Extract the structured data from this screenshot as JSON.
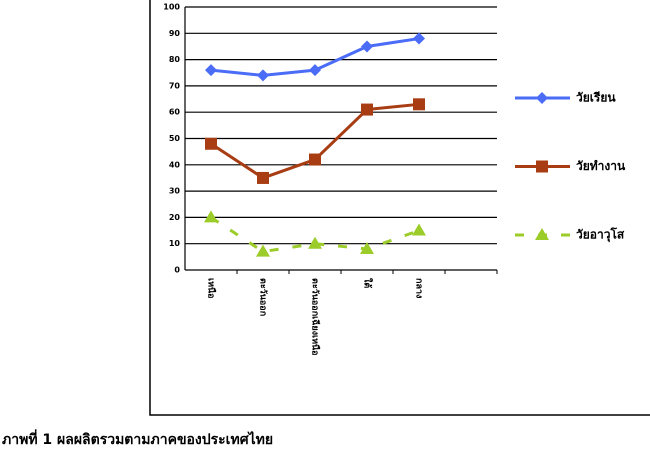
{
  "chart_data": {
    "type": "line",
    "caption": "ภาพที่ 1 ผลผลิตรวมตามภาคของประเทศไทย",
    "categories": [
      "เหนือ",
      "ตะวันออก",
      "ตะวันออกเฉียงเหนือ",
      "ใต้",
      "กลาง",
      null
    ],
    "series": [
      {
        "name": "วัยเรียน",
        "color": "#4a6cf7",
        "marker": "diamond",
        "dashed": false,
        "values": [
          76,
          74,
          76,
          85,
          88,
          null
        ]
      },
      {
        "name": "วัยทำงาน",
        "color": "#a83c12",
        "marker": "square",
        "dashed": false,
        "values": [
          48,
          35,
          42,
          61,
          63,
          null
        ]
      },
      {
        "name": "วัยอาวุโส",
        "color": "#9ccc2a",
        "marker": "triangle",
        "dashed": true,
        "values": [
          20,
          7,
          10,
          8,
          15,
          null
        ]
      }
    ],
    "ylim": [
      0,
      100
    ],
    "yticks": [
      0,
      10,
      20,
      30,
      40,
      50,
      60,
      70,
      80,
      90,
      100
    ],
    "grid": true,
    "legend": "right"
  }
}
